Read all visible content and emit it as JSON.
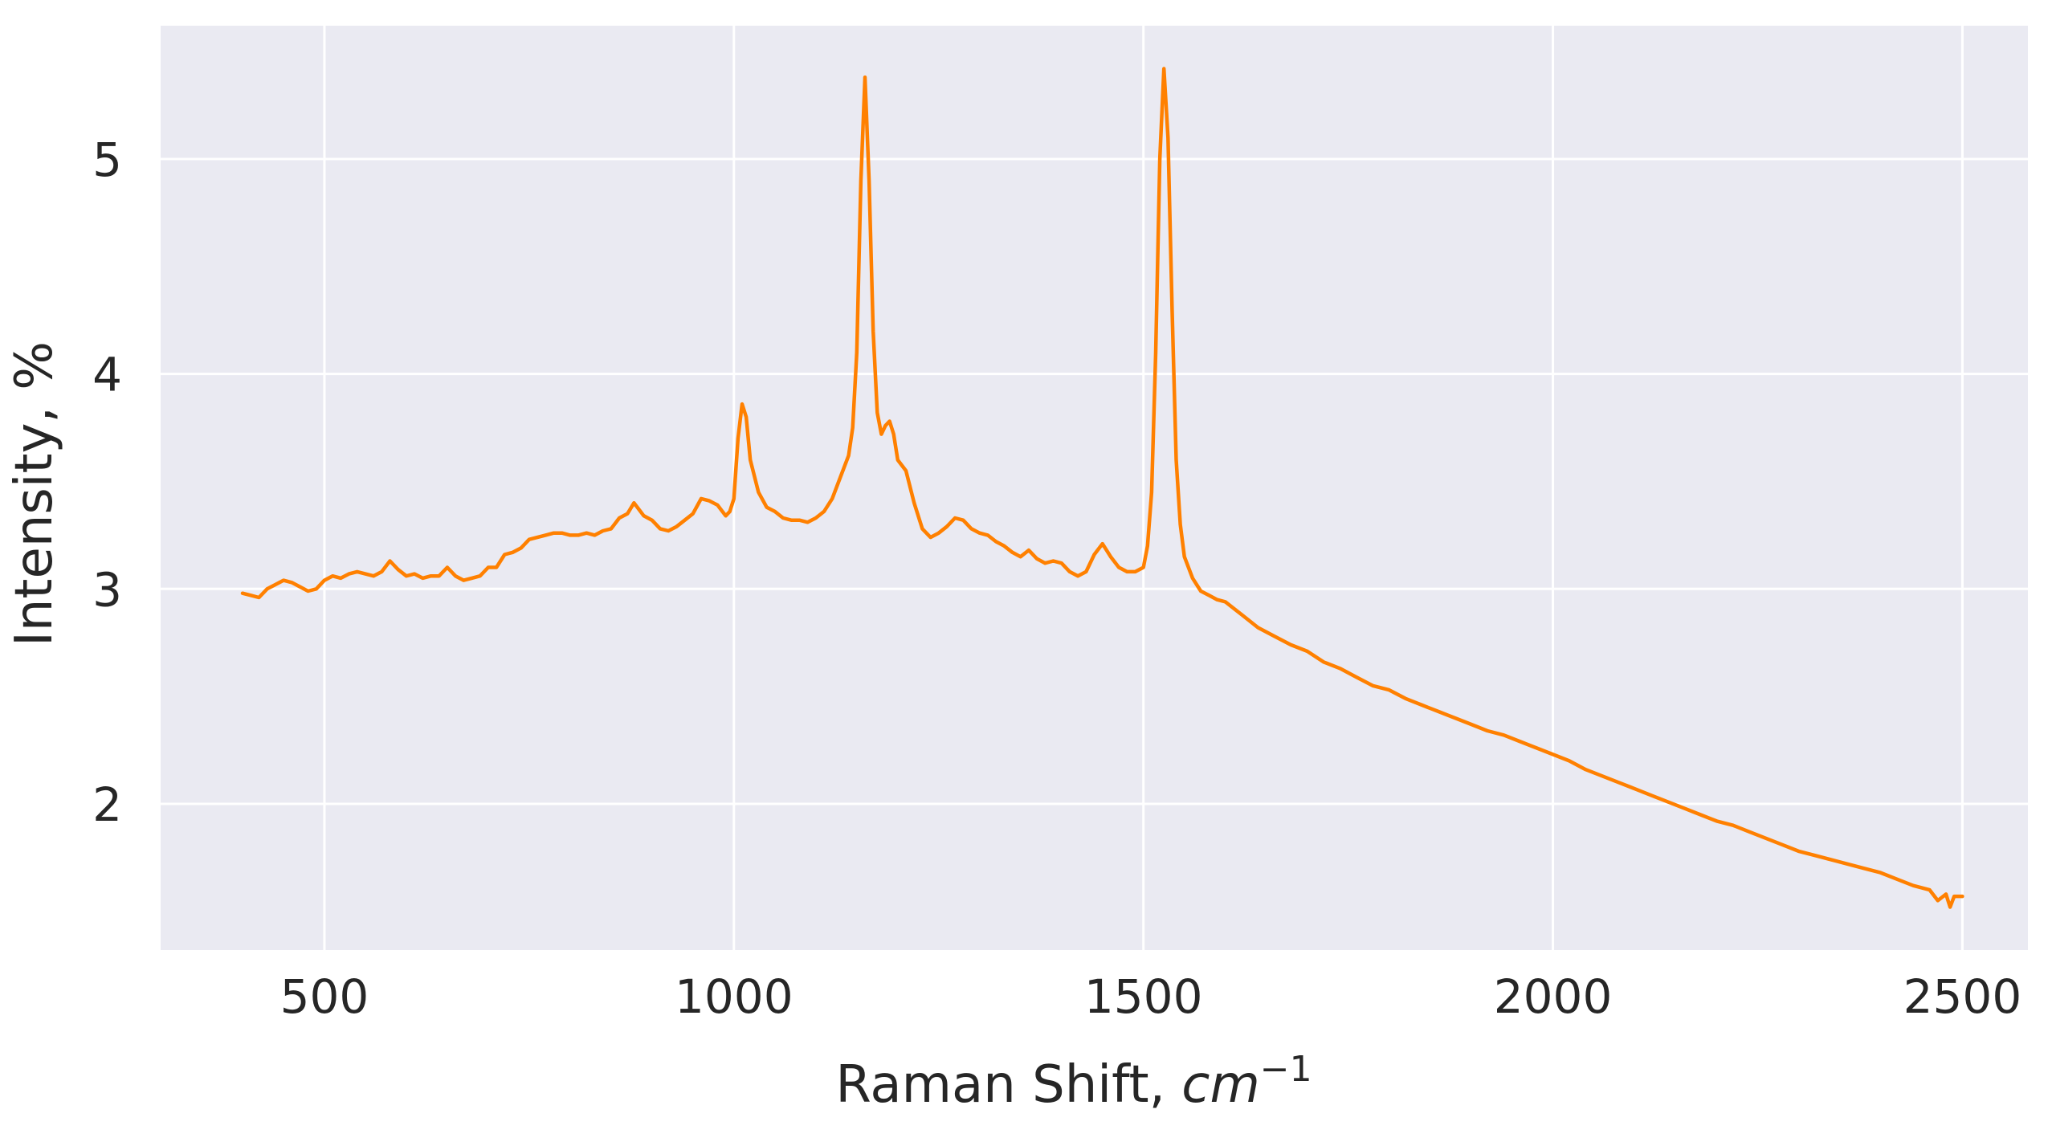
{
  "chart_data": {
    "type": "line",
    "xlabel": "Raman Shift, cm⁻¹",
    "xlabel_base": "Raman Shift, ",
    "xlabel_unit": "cm",
    "xlabel_exponent": "−1",
    "ylabel": "Intensity, %",
    "xlim": [
      300,
      2580
    ],
    "ylim": [
      1.32,
      5.62
    ],
    "x_ticks": [
      500,
      1000,
      1500,
      2000,
      2500
    ],
    "x_tick_labels": [
      "500",
      "1000",
      "1500",
      "2000",
      "2500"
    ],
    "y_ticks": [
      2,
      3,
      4,
      5
    ],
    "y_tick_labels": [
      "2",
      "3",
      "4",
      "5"
    ],
    "grid": true,
    "background_color": "#eaeaf2",
    "grid_color": "#ffffff",
    "series": [
      {
        "color": "#ff8000",
        "points": [
          [
            400,
            2.98
          ],
          [
            410,
            2.97
          ],
          [
            420,
            2.96
          ],
          [
            430,
            3.0
          ],
          [
            440,
            3.02
          ],
          [
            450,
            3.04
          ],
          [
            460,
            3.03
          ],
          [
            470,
            3.01
          ],
          [
            480,
            2.99
          ],
          [
            490,
            3.0
          ],
          [
            500,
            3.04
          ],
          [
            510,
            3.06
          ],
          [
            520,
            3.05
          ],
          [
            530,
            3.07
          ],
          [
            540,
            3.08
          ],
          [
            550,
            3.07
          ],
          [
            560,
            3.06
          ],
          [
            570,
            3.08
          ],
          [
            580,
            3.13
          ],
          [
            590,
            3.09
          ],
          [
            600,
            3.06
          ],
          [
            610,
            3.07
          ],
          [
            620,
            3.05
          ],
          [
            630,
            3.06
          ],
          [
            640,
            3.06
          ],
          [
            650,
            3.1
          ],
          [
            660,
            3.06
          ],
          [
            670,
            3.04
          ],
          [
            680,
            3.05
          ],
          [
            690,
            3.06
          ],
          [
            700,
            3.1
          ],
          [
            710,
            3.1
          ],
          [
            720,
            3.16
          ],
          [
            730,
            3.17
          ],
          [
            740,
            3.19
          ],
          [
            750,
            3.23
          ],
          [
            760,
            3.24
          ],
          [
            770,
            3.25
          ],
          [
            780,
            3.26
          ],
          [
            790,
            3.26
          ],
          [
            800,
            3.25
          ],
          [
            810,
            3.25
          ],
          [
            820,
            3.26
          ],
          [
            830,
            3.25
          ],
          [
            840,
            3.27
          ],
          [
            850,
            3.28
          ],
          [
            860,
            3.33
          ],
          [
            870,
            3.35
          ],
          [
            878,
            3.4
          ],
          [
            890,
            3.34
          ],
          [
            900,
            3.32
          ],
          [
            910,
            3.28
          ],
          [
            920,
            3.27
          ],
          [
            930,
            3.29
          ],
          [
            940,
            3.32
          ],
          [
            950,
            3.35
          ],
          [
            960,
            3.42
          ],
          [
            970,
            3.41
          ],
          [
            980,
            3.39
          ],
          [
            990,
            3.34
          ],
          [
            995,
            3.36
          ],
          [
            1000,
            3.42
          ],
          [
            1005,
            3.7
          ],
          [
            1010,
            3.86
          ],
          [
            1015,
            3.8
          ],
          [
            1020,
            3.6
          ],
          [
            1030,
            3.45
          ],
          [
            1040,
            3.38
          ],
          [
            1050,
            3.36
          ],
          [
            1060,
            3.33
          ],
          [
            1070,
            3.32
          ],
          [
            1080,
            3.32
          ],
          [
            1090,
            3.31
          ],
          [
            1100,
            3.33
          ],
          [
            1110,
            3.36
          ],
          [
            1120,
            3.42
          ],
          [
            1130,
            3.52
          ],
          [
            1140,
            3.62
          ],
          [
            1145,
            3.75
          ],
          [
            1150,
            4.1
          ],
          [
            1155,
            4.9
          ],
          [
            1160,
            5.38
          ],
          [
            1165,
            4.9
          ],
          [
            1170,
            4.2
          ],
          [
            1175,
            3.82
          ],
          [
            1180,
            3.72
          ],
          [
            1185,
            3.76
          ],
          [
            1190,
            3.78
          ],
          [
            1195,
            3.72
          ],
          [
            1200,
            3.6
          ],
          [
            1210,
            3.55
          ],
          [
            1220,
            3.4
          ],
          [
            1230,
            3.28
          ],
          [
            1240,
            3.24
          ],
          [
            1250,
            3.26
          ],
          [
            1260,
            3.29
          ],
          [
            1270,
            3.33
          ],
          [
            1280,
            3.32
          ],
          [
            1290,
            3.28
          ],
          [
            1300,
            3.26
          ],
          [
            1310,
            3.25
          ],
          [
            1320,
            3.22
          ],
          [
            1330,
            3.2
          ],
          [
            1340,
            3.17
          ],
          [
            1350,
            3.15
          ],
          [
            1360,
            3.18
          ],
          [
            1370,
            3.14
          ],
          [
            1380,
            3.12
          ],
          [
            1390,
            3.13
          ],
          [
            1400,
            3.12
          ],
          [
            1410,
            3.08
          ],
          [
            1420,
            3.06
          ],
          [
            1430,
            3.08
          ],
          [
            1440,
            3.16
          ],
          [
            1450,
            3.21
          ],
          [
            1460,
            3.15
          ],
          [
            1470,
            3.1
          ],
          [
            1480,
            3.08
          ],
          [
            1490,
            3.08
          ],
          [
            1500,
            3.1
          ],
          [
            1505,
            3.2
          ],
          [
            1510,
            3.45
          ],
          [
            1515,
            4.1
          ],
          [
            1520,
            5.0
          ],
          [
            1525,
            5.42
          ],
          [
            1530,
            5.1
          ],
          [
            1535,
            4.3
          ],
          [
            1540,
            3.6
          ],
          [
            1545,
            3.3
          ],
          [
            1550,
            3.15
          ],
          [
            1560,
            3.05
          ],
          [
            1570,
            2.99
          ],
          [
            1580,
            2.97
          ],
          [
            1590,
            2.95
          ],
          [
            1600,
            2.94
          ],
          [
            1620,
            2.88
          ],
          [
            1640,
            2.82
          ],
          [
            1660,
            2.78
          ],
          [
            1680,
            2.74
          ],
          [
            1700,
            2.71
          ],
          [
            1720,
            2.66
          ],
          [
            1740,
            2.63
          ],
          [
            1760,
            2.59
          ],
          [
            1780,
            2.55
          ],
          [
            1800,
            2.53
          ],
          [
            1820,
            2.49
          ],
          [
            1840,
            2.46
          ],
          [
            1860,
            2.43
          ],
          [
            1880,
            2.4
          ],
          [
            1900,
            2.37
          ],
          [
            1920,
            2.34
          ],
          [
            1940,
            2.32
          ],
          [
            1960,
            2.29
          ],
          [
            1980,
            2.26
          ],
          [
            2000,
            2.23
          ],
          [
            2020,
            2.2
          ],
          [
            2040,
            2.16
          ],
          [
            2060,
            2.13
          ],
          [
            2080,
            2.1
          ],
          [
            2100,
            2.07
          ],
          [
            2120,
            2.04
          ],
          [
            2140,
            2.01
          ],
          [
            2160,
            1.98
          ],
          [
            2180,
            1.95
          ],
          [
            2200,
            1.92
          ],
          [
            2220,
            1.9
          ],
          [
            2240,
            1.87
          ],
          [
            2260,
            1.84
          ],
          [
            2280,
            1.81
          ],
          [
            2300,
            1.78
          ],
          [
            2320,
            1.76
          ],
          [
            2340,
            1.74
          ],
          [
            2360,
            1.72
          ],
          [
            2380,
            1.7
          ],
          [
            2400,
            1.68
          ],
          [
            2420,
            1.65
          ],
          [
            2440,
            1.62
          ],
          [
            2460,
            1.6
          ],
          [
            2470,
            1.55
          ],
          [
            2480,
            1.58
          ],
          [
            2485,
            1.52
          ],
          [
            2490,
            1.57
          ],
          [
            2500,
            1.57
          ]
        ]
      }
    ]
  }
}
